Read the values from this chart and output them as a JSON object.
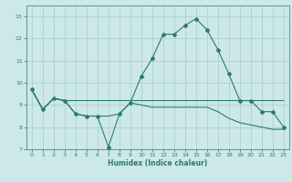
{
  "title": "",
  "xlabel": "Humidex (Indice chaleur)",
  "ylabel": "",
  "bg_color": "#cce8e8",
  "grid_color": "#aacccc",
  "line_color": "#2d7a72",
  "xlim": [
    -0.5,
    23.5
  ],
  "ylim": [
    7,
    13.5
  ],
  "yticks": [
    7,
    8,
    9,
    10,
    11,
    12,
    13
  ],
  "xticks": [
    0,
    1,
    2,
    3,
    4,
    5,
    6,
    7,
    8,
    9,
    10,
    11,
    12,
    13,
    14,
    15,
    16,
    17,
    18,
    19,
    20,
    21,
    22,
    23
  ],
  "series": [
    {
      "x": [
        0,
        1,
        2,
        3,
        4,
        5,
        6,
        7,
        8,
        9,
        10,
        11,
        12,
        13,
        14,
        15,
        16,
        17,
        18,
        19,
        20,
        21,
        22,
        23
      ],
      "y": [
        9.7,
        8.8,
        9.3,
        9.2,
        9.2,
        9.2,
        9.2,
        9.2,
        9.2,
        9.2,
        9.2,
        9.2,
        9.2,
        9.2,
        9.2,
        9.2,
        9.2,
        9.2,
        9.2,
        9.2,
        9.2,
        9.2,
        9.2,
        9.2
      ],
      "marker": false
    },
    {
      "x": [
        0,
        1,
        2,
        3,
        4,
        5,
        6,
        7,
        8,
        9,
        10,
        11,
        12,
        13,
        14,
        15,
        16,
        17,
        18,
        19,
        20,
        21,
        22,
        23
      ],
      "y": [
        9.7,
        8.8,
        9.3,
        9.2,
        8.6,
        8.5,
        8.5,
        7.1,
        8.6,
        9.1,
        10.3,
        11.1,
        12.2,
        12.2,
        12.6,
        12.9,
        12.4,
        11.5,
        10.4,
        9.2,
        9.2,
        8.7,
        8.7,
        8.0
      ],
      "marker": true
    },
    {
      "x": [
        0,
        1,
        2,
        3,
        4,
        5,
        6,
        7,
        8,
        9,
        10,
        11,
        12,
        13,
        14,
        15,
        16,
        17,
        18,
        19,
        20,
        21,
        22,
        23
      ],
      "y": [
        9.7,
        8.8,
        9.3,
        9.2,
        8.6,
        8.5,
        8.5,
        8.5,
        8.6,
        9.1,
        9.0,
        8.9,
        8.9,
        8.9,
        8.9,
        8.9,
        8.9,
        8.7,
        8.4,
        8.2,
        8.1,
        8.0,
        7.9,
        7.9
      ],
      "marker": false
    }
  ]
}
